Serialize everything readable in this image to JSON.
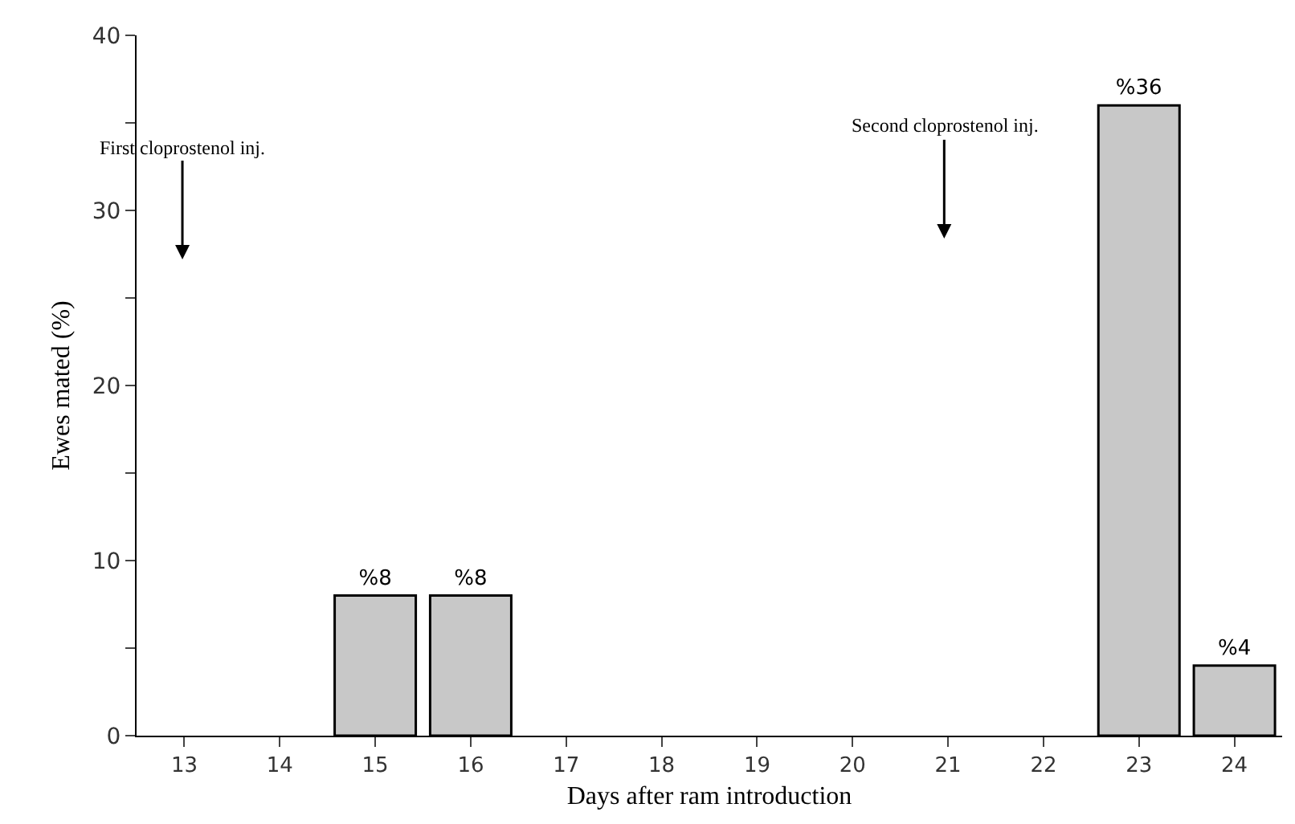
{
  "chart_data": {
    "type": "bar",
    "xlabel": "Days after ram introduction",
    "ylabel": "Ewes mated (%)",
    "categories": [
      "13",
      "14",
      "15",
      "16",
      "17",
      "18",
      "19",
      "20",
      "21",
      "22",
      "23",
      "24"
    ],
    "values": [
      null,
      null,
      8,
      8,
      null,
      null,
      null,
      null,
      null,
      null,
      36,
      4
    ],
    "value_labels": [
      null,
      null,
      "%8",
      "%8",
      null,
      null,
      null,
      null,
      null,
      null,
      "%36",
      "%4"
    ],
    "color": "#c8c8c8",
    "ylim": [
      0,
      40
    ],
    "yticks": [
      0,
      {
        "value": 5,
        "label": null
      },
      10,
      {
        "value": 15,
        "label": null
      },
      20,
      {
        "value": 25,
        "label": null
      },
      30,
      {
        "value": 35,
        "label": null
      },
      40
    ],
    "annotations": [
      "First cloprostenol inj.",
      "Second cloprostenol inj."
    ],
    "grid": false
  }
}
